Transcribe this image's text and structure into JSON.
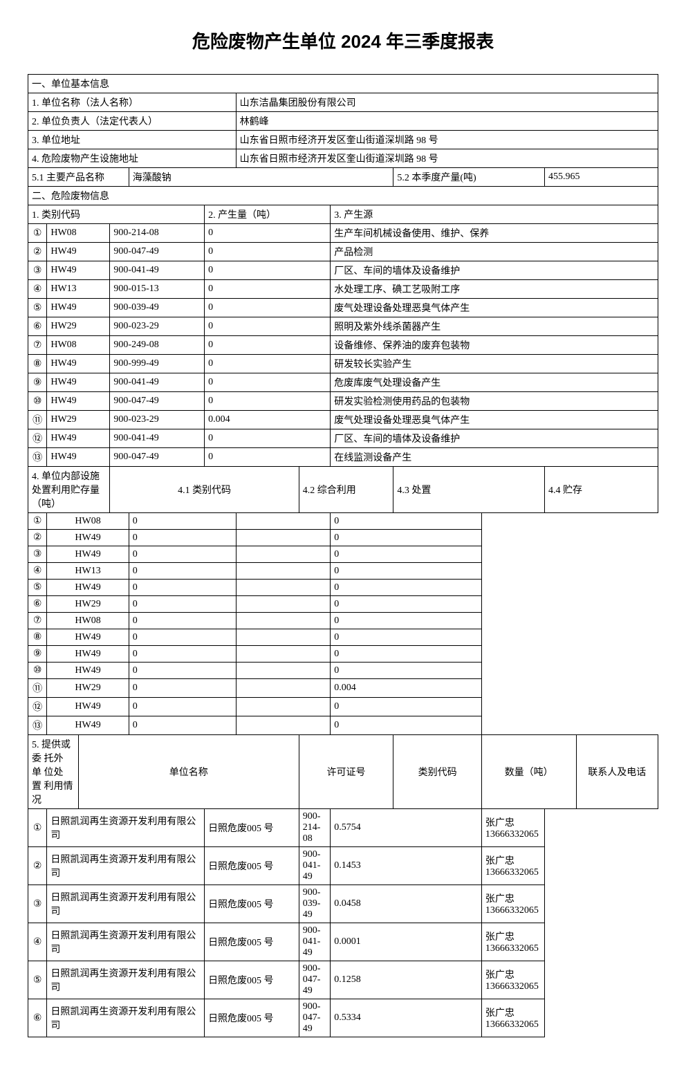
{
  "title": "危险废物产生单位 2024 年三季度报表",
  "section1": {
    "header": "一、单位基本信息",
    "row1_label": "1. 单位名称（法人名称）",
    "row1_value": "山东洁晶集团股份有限公司",
    "row2_label": "2. 单位负责人（法定代表人）",
    "row2_value": "林鹤峰",
    "row3_label": "3. 单位地址",
    "row3_value": "山东省日照市经济开发区奎山街道深圳路 98 号",
    "row4_label": "4. 危险废物产生设施地址",
    "row4_value": "山东省日照市经济开发区奎山街道深圳路 98 号",
    "row5a_label": "5.1 主要产品名称",
    "row5a_value": "海藻酸钠",
    "row5b_label": "5.2 本季度产量(吨)",
    "row5b_value": "455.965"
  },
  "section2": {
    "header": "二、危险废物信息",
    "col1_label": "1. 类别代码",
    "col2_label": "2. 产生量（吨）",
    "col3_label": "3. 产生源",
    "rows": [
      {
        "num": "①",
        "code1": "HW08",
        "code2": "900-214-08",
        "qty": "0",
        "source": "生产车间机械设备使用、维护、保养"
      },
      {
        "num": "②",
        "code1": "HW49",
        "code2": "900-047-49",
        "qty": "0",
        "source": "产品检测"
      },
      {
        "num": "③",
        "code1": "HW49",
        "code2": "900-041-49",
        "qty": "0",
        "source": "厂区、车间的墙体及设备维护"
      },
      {
        "num": "④",
        "code1": "HW13",
        "code2": "900-015-13",
        "qty": "0",
        "source": "水处理工序、碘工艺吸附工序"
      },
      {
        "num": "⑤",
        "code1": "HW49",
        "code2": "900-039-49",
        "qty": "0",
        "source": "废气处理设备处理恶臭气体产生"
      },
      {
        "num": "⑥",
        "code1": "HW29",
        "code2": "900-023-29",
        "qty": "0",
        "source": "照明及紫外线杀菌器产生"
      },
      {
        "num": "⑦",
        "code1": "HW08",
        "code2": "900-249-08",
        "qty": "0",
        "source": "设备维修、保养油的废弃包装物"
      },
      {
        "num": "⑧",
        "code1": "HW49",
        "code2": "900-999-49",
        "qty": "0",
        "source": "研发较长实验产生"
      },
      {
        "num": "⑨",
        "code1": "HW49",
        "code2": "900-041-49",
        "qty": "0",
        "source": "危废库废气处理设备产生"
      },
      {
        "num": "⑩",
        "code1": "HW49",
        "code2": "900-047-49",
        "qty": "0",
        "source": "研发实验检测使用药品的包装物"
      },
      {
        "num": "⑪",
        "code1": "HW29",
        "code2": "900-023-29",
        "qty": "0.004",
        "source": "废气处理设备处理恶臭气体产生"
      },
      {
        "num": "⑫",
        "code1": "HW49",
        "code2": "900-041-49",
        "qty": "0",
        "source": "厂区、车间的墙体及设备维护"
      },
      {
        "num": "⑬",
        "code1": "HW49",
        "code2": "900-047-49",
        "qty": "0",
        "source": "在线监测设备产生"
      }
    ]
  },
  "section4": {
    "label": "4. 单位内部设施处置利用贮存量（吨）",
    "col41": "4.1 类别代码",
    "col42": "4.2 综合利用",
    "col43": "4.3 处置",
    "col44": "4.4 贮存",
    "rows": [
      {
        "num": "①",
        "code": "HW08",
        "use": "0",
        "dispose": "",
        "store": "0"
      },
      {
        "num": "②",
        "code": "HW49",
        "use": "0",
        "dispose": "",
        "store": "0"
      },
      {
        "num": "③",
        "code": "HW49",
        "use": "0",
        "dispose": "",
        "store": "0"
      },
      {
        "num": "④",
        "code": "HW13",
        "use": "0",
        "dispose": "",
        "store": "0"
      },
      {
        "num": "⑤",
        "code": "HW49",
        "use": "0",
        "dispose": "",
        "store": "0"
      },
      {
        "num": "⑥",
        "code": "HW29",
        "use": "0",
        "dispose": "",
        "store": "0"
      },
      {
        "num": "⑦",
        "code": "HW08",
        "use": "0",
        "dispose": "",
        "store": "0"
      },
      {
        "num": "⑧",
        "code": "HW49",
        "use": "0",
        "dispose": "",
        "store": "0"
      },
      {
        "num": "⑨",
        "code": "HW49",
        "use": "0",
        "dispose": "",
        "store": "0"
      },
      {
        "num": "⑩",
        "code": "HW49",
        "use": "0",
        "dispose": "",
        "store": "0"
      },
      {
        "num": "⑪",
        "code": "HW29",
        "use": "0",
        "dispose": "",
        "store": "0.004"
      },
      {
        "num": "⑫",
        "code": "HW49",
        "use": "0",
        "dispose": "",
        "store": "0"
      },
      {
        "num": "⑬",
        "code": "HW49",
        "use": "0",
        "dispose": "",
        "store": "0"
      }
    ]
  },
  "section5": {
    "label": "5. 提供或 委 托外 单 位处 置 利用情况",
    "col_unit": "单位名称",
    "col_license": "许可证号",
    "col_code": "类别代码",
    "col_qty": "数量（吨）",
    "col_contact": "联系人及电话",
    "rows": [
      {
        "num": "①",
        "unit": "日照凯润再生资源开发利用有限公司",
        "license": "日照危废005 号",
        "code": "900-214-08",
        "qty": "0.5754",
        "contact": "张广忠\n13666332065"
      },
      {
        "num": "②",
        "unit": "日照凯润再生资源开发利用有限公司",
        "license": "日照危废005 号",
        "code": "900-041-49",
        "qty": "0.1453",
        "contact": "张广忠\n13666332065"
      },
      {
        "num": "③",
        "unit": "日照凯润再生资源开发利用有限公司",
        "license": "日照危废005 号",
        "code": "900-039-49",
        "qty": "0.0458",
        "contact": "张广忠\n13666332065"
      },
      {
        "num": "④",
        "unit": "日照凯润再生资源开发利用有限公司",
        "license": "日照危废005 号",
        "code": "900-041-49",
        "qty": "0.0001",
        "contact": "张广忠\n13666332065"
      },
      {
        "num": "⑤",
        "unit": "日照凯润再生资源开发利用有限公司",
        "license": "日照危废005 号",
        "code": "900-047-49",
        "qty": "0.1258",
        "contact": "张广忠\n13666332065"
      },
      {
        "num": "⑥",
        "unit": "日照凯润再生资源开发利用有限公司",
        "license": "日照危废005 号",
        "code": "900-047-49",
        "qty": "0.5334",
        "contact": "张广忠\n13666332065"
      }
    ]
  }
}
